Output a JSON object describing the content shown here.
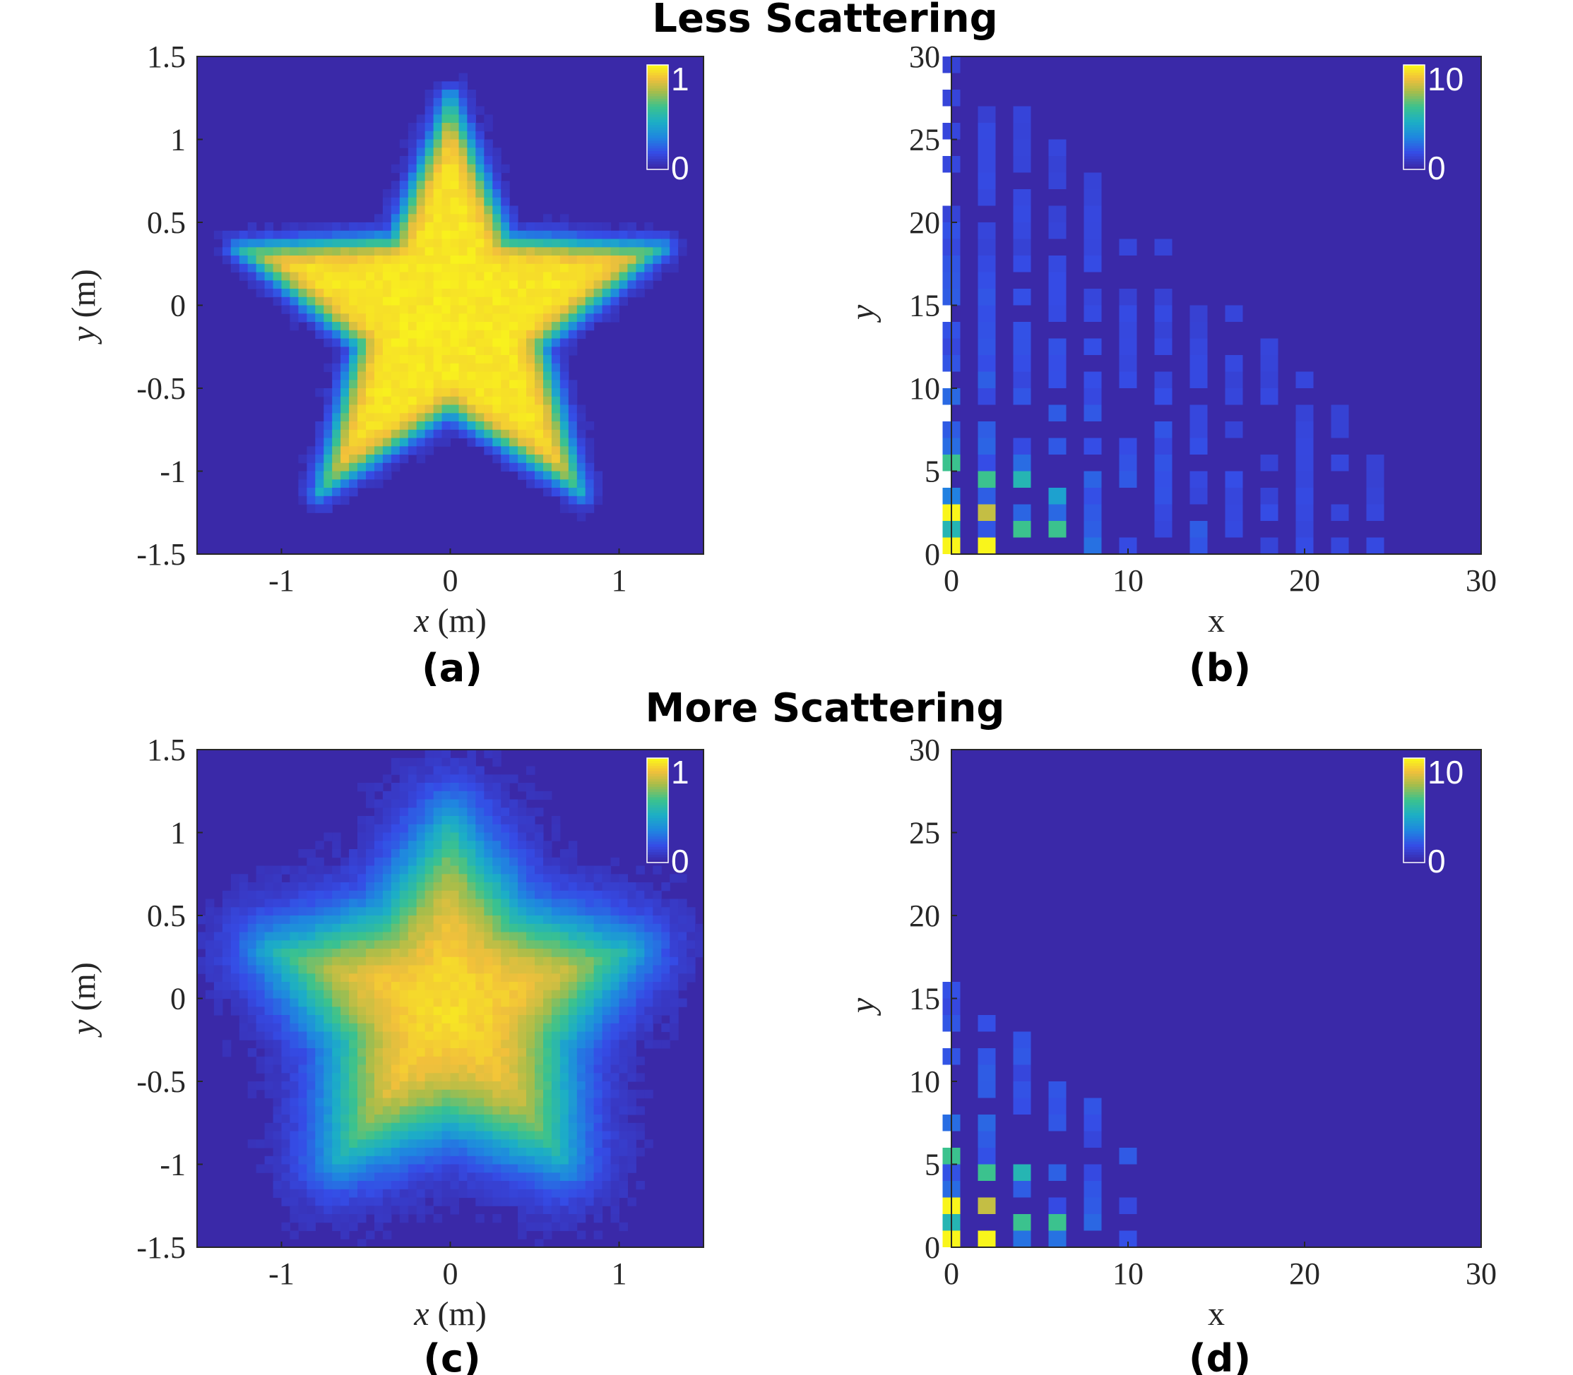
{
  "titles": {
    "top": "Less Scattering",
    "bottom": "More Scattering"
  },
  "colors": {
    "background": "#3a29a8",
    "high": "#f9f51b",
    "mid": "#2fbfa0",
    "low": "#3a29a8"
  },
  "chart_data": [
    {
      "id": "a",
      "type": "heatmap",
      "panel_label": "(a)",
      "content": "star-shaped reconstruction, sharp edges, five-pointed star centered at origin",
      "xlabel": "x (m)",
      "ylabel": "y (m)",
      "xlim": [
        -1.5,
        1.5
      ],
      "ylim": [
        -1.5,
        1.5
      ],
      "xticks": [
        "-1",
        "0",
        "1"
      ],
      "yticks": [
        "1.5",
        "1",
        "0.5",
        "0",
        "-0.5",
        "-1",
        "-1.5"
      ],
      "colorbar": {
        "max": "1",
        "min": "0"
      },
      "star": {
        "outer_radius": 1.32,
        "inner_radius": 0.57,
        "blur": 0.04,
        "inside_value": 0.97,
        "outside_value": 0.0
      }
    },
    {
      "id": "b",
      "type": "heatmap",
      "panel_label": "(b)",
      "content": "sparse coefficient map, strongest at small x and y",
      "xlabel": "x",
      "ylabel": "y",
      "xlim": [
        0,
        30
      ],
      "ylim": [
        0,
        30
      ],
      "xticks": [
        "0",
        "10",
        "20",
        "30"
      ],
      "yticks": [
        "30",
        "25",
        "20",
        "15",
        "10",
        "5",
        "0"
      ],
      "colorbar": {
        "max": "10",
        "min": "0"
      },
      "columns_x": [
        0,
        2,
        4,
        6,
        8,
        10,
        12,
        14,
        16,
        18,
        20,
        22,
        24
      ],
      "max_extent_y": 30,
      "notable_cells": [
        {
          "x": 0,
          "y": 0,
          "value": 10
        },
        {
          "x": 0,
          "y": 1,
          "value": 5
        },
        {
          "x": 0,
          "y": 2,
          "value": 10
        },
        {
          "x": 0,
          "y": 5,
          "value": 6
        },
        {
          "x": 2,
          "y": 0,
          "value": 10
        },
        {
          "x": 2,
          "y": 2,
          "value": 8
        },
        {
          "x": 2,
          "y": 4,
          "value": 6
        },
        {
          "x": 4,
          "y": 1,
          "value": 6
        },
        {
          "x": 4,
          "y": 4,
          "value": 5
        },
        {
          "x": 6,
          "y": 1,
          "value": 6
        },
        {
          "x": 6,
          "y": 3,
          "value": 4
        }
      ]
    },
    {
      "id": "c",
      "type": "heatmap",
      "panel_label": "(c)",
      "content": "star-shaped reconstruction, blurred edges with halo",
      "xlabel": "x (m)",
      "ylabel": "y (m)",
      "xlim": [
        -1.5,
        1.5
      ],
      "ylim": [
        -1.5,
        1.5
      ],
      "xticks": [
        "-1",
        "0",
        "1"
      ],
      "yticks": [
        "1.5",
        "1",
        "0.5",
        "0",
        "-0.5",
        "-1",
        "-1.5"
      ],
      "colorbar": {
        "max": "1",
        "min": "0"
      },
      "star": {
        "outer_radius": 1.12,
        "inner_radius": 0.68,
        "blur": 0.14,
        "inside_value": 0.95,
        "outside_value": 0.0
      }
    },
    {
      "id": "d",
      "type": "heatmap",
      "panel_label": "(d)",
      "content": "sparse coefficient map, confined to low x",
      "xlabel": "x",
      "ylabel": "y",
      "xlim": [
        0,
        30
      ],
      "ylim": [
        0,
        30
      ],
      "xticks": [
        "0",
        "10",
        "20",
        "30"
      ],
      "yticks": [
        "30",
        "25",
        "20",
        "15",
        "10",
        "5",
        "0"
      ],
      "colorbar": {
        "max": "10",
        "min": "0"
      },
      "columns_x": [
        0,
        2,
        4,
        6,
        8,
        10
      ],
      "max_extent_y": 17,
      "notable_cells": [
        {
          "x": 0,
          "y": 0,
          "value": 10
        },
        {
          "x": 0,
          "y": 1,
          "value": 5
        },
        {
          "x": 0,
          "y": 2,
          "value": 10
        },
        {
          "x": 0,
          "y": 5,
          "value": 6
        },
        {
          "x": 2,
          "y": 0,
          "value": 10
        },
        {
          "x": 2,
          "y": 2,
          "value": 8
        },
        {
          "x": 2,
          "y": 4,
          "value": 6
        },
        {
          "x": 4,
          "y": 1,
          "value": 6
        },
        {
          "x": 4,
          "y": 4,
          "value": 5
        },
        {
          "x": 6,
          "y": 1,
          "value": 6
        }
      ]
    }
  ]
}
